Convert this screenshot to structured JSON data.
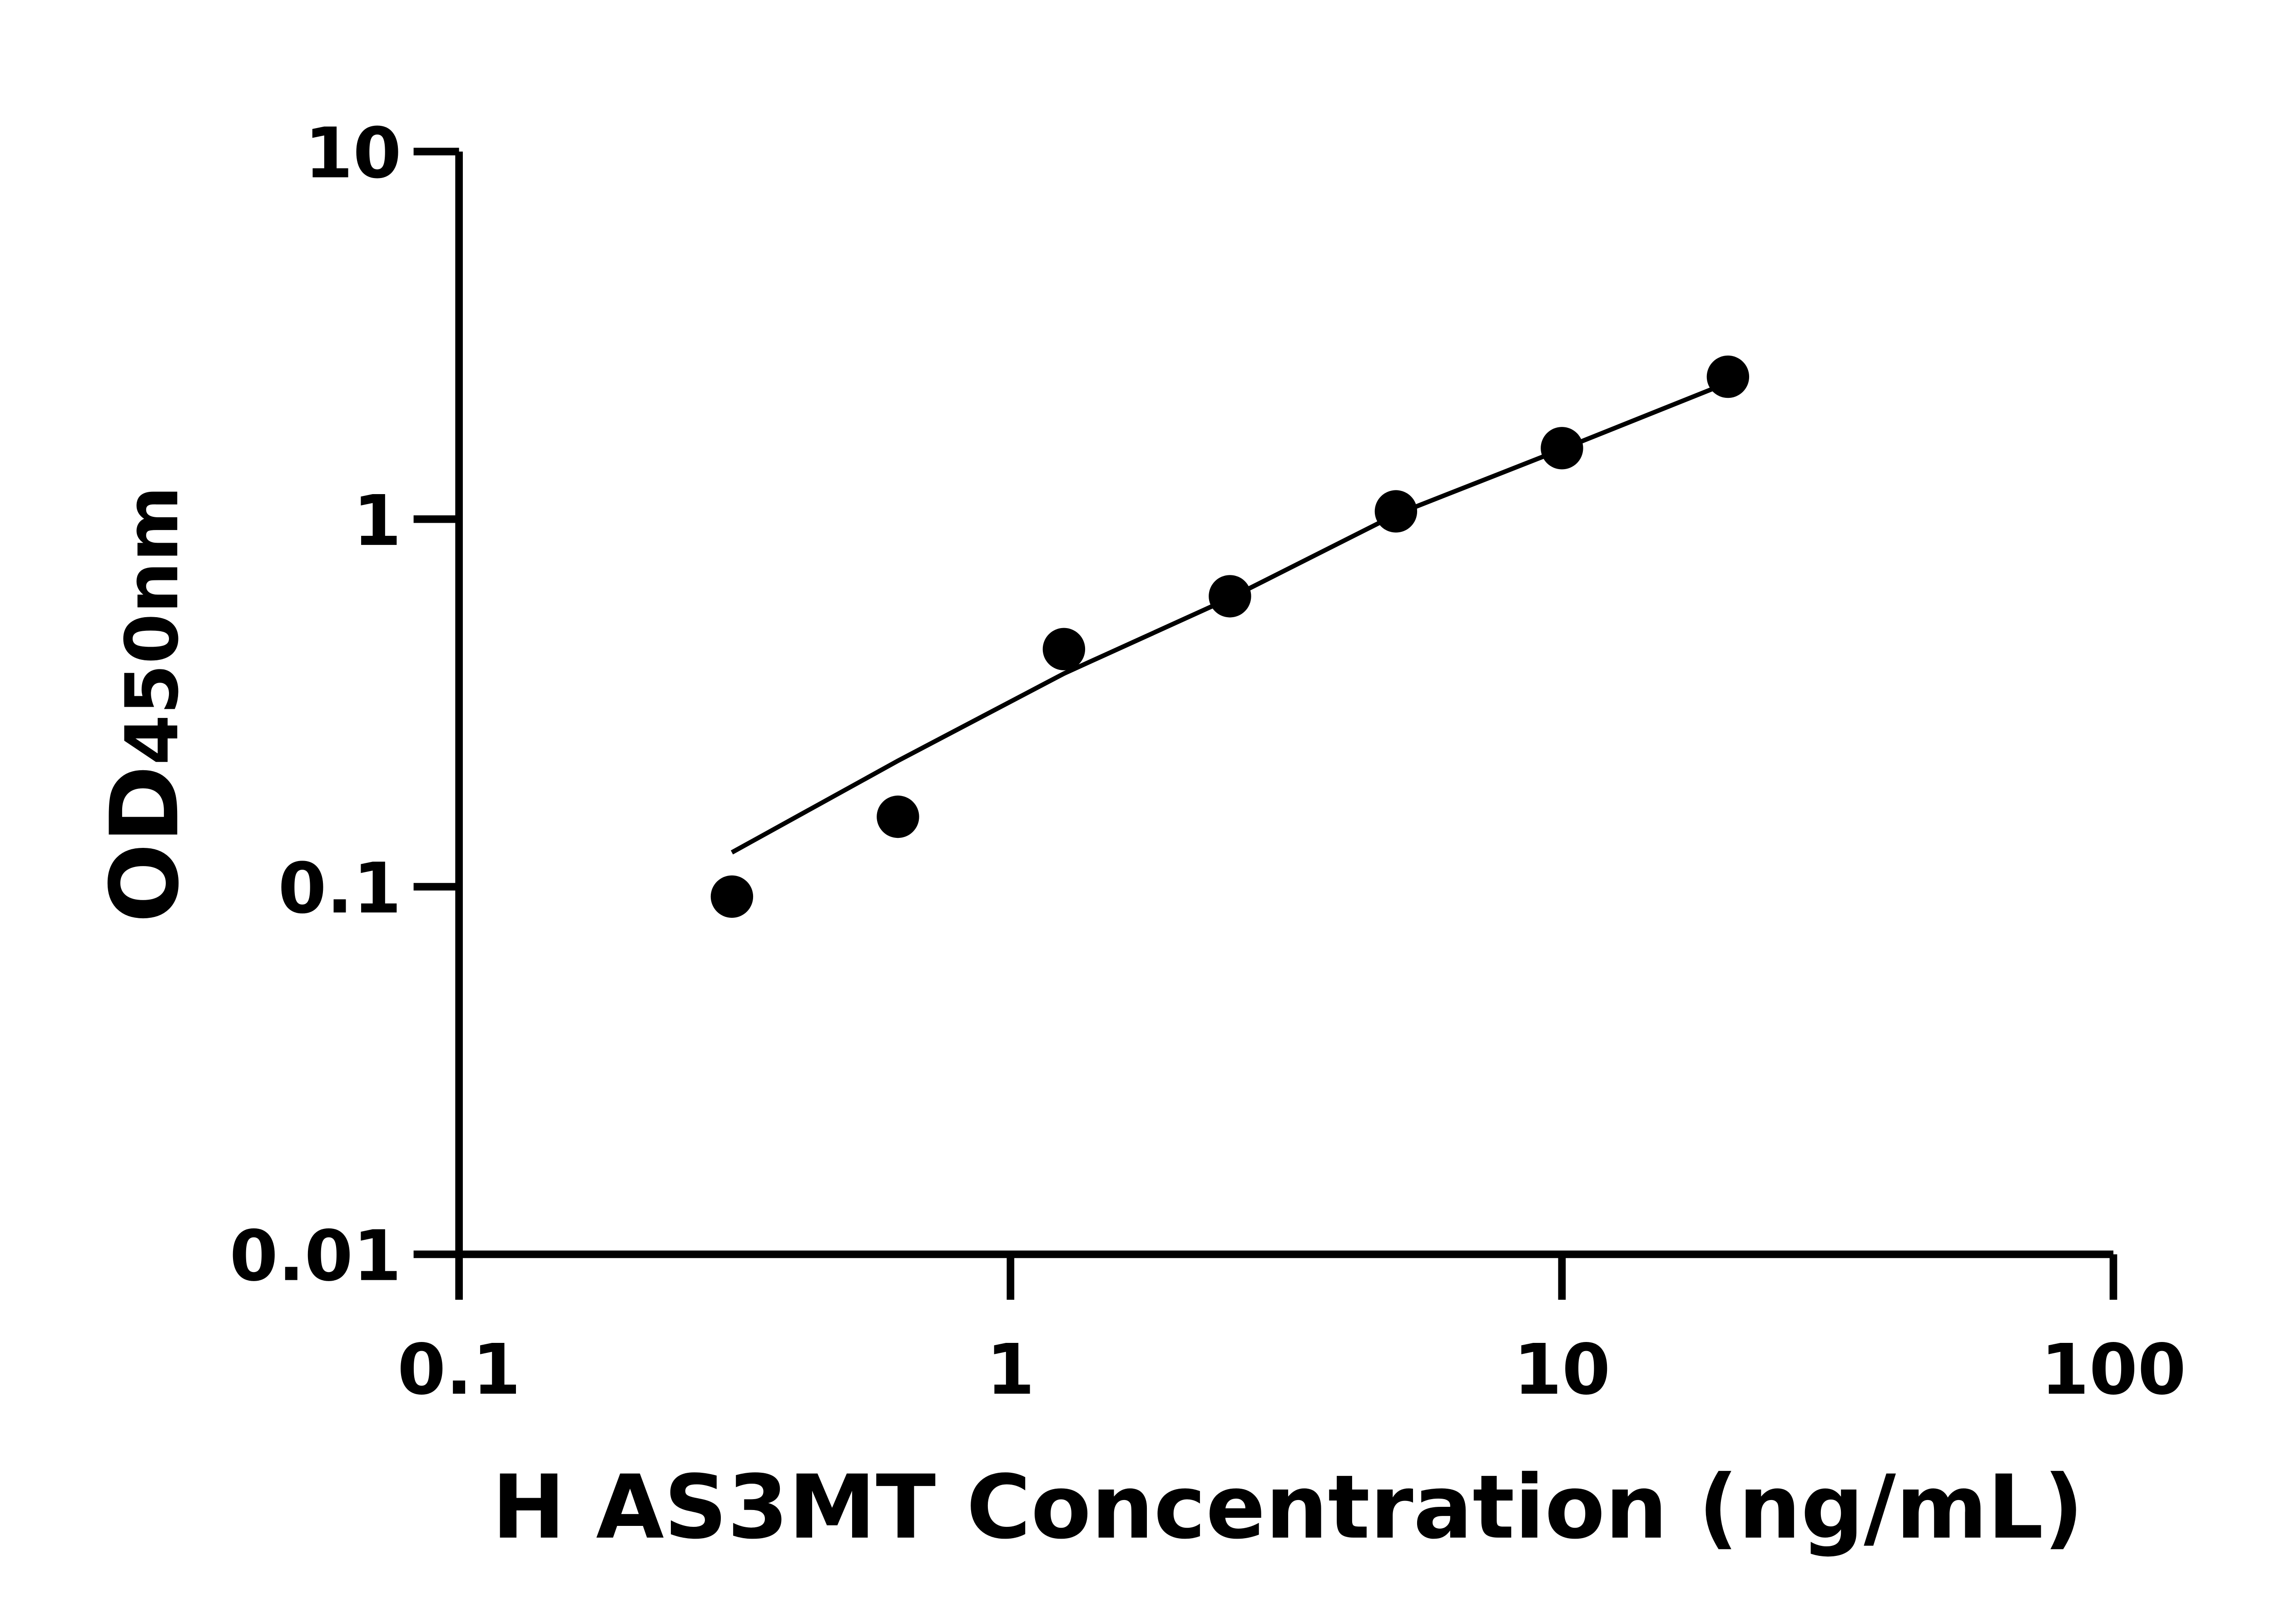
{
  "chart_data": {
    "type": "scatter",
    "title": "",
    "xlabel": "H AS3MT Concentration (ng/mL)",
    "ylabel_main": "OD",
    "ylabel_sub": "450nm",
    "x_scale": "log",
    "y_scale": "log",
    "xlim": [
      0.1,
      100
    ],
    "ylim": [
      0.01,
      10
    ],
    "x_ticks": [
      0.1,
      1,
      10,
      100
    ],
    "x_tick_labels": [
      "0.1",
      "1",
      "10",
      "100"
    ],
    "y_ticks": [
      0.01,
      0.1,
      1,
      10
    ],
    "y_tick_labels": [
      "0.01",
      "0.1",
      "1",
      "10"
    ],
    "grid": false,
    "points": {
      "x": [
        0.3125,
        0.625,
        1.25,
        2.5,
        5,
        10,
        20
      ],
      "y": [
        0.094,
        0.155,
        0.443,
        0.617,
        1.05,
        1.56,
        2.44
      ]
    },
    "fit_curve": {
      "x": [
        0.3125,
        0.625,
        1.25,
        2.5,
        5,
        10,
        20
      ],
      "y": [
        0.124,
        0.22,
        0.38,
        0.61,
        1.03,
        1.55,
        2.35
      ]
    },
    "colors": {
      "points": "#000000",
      "line": "#000000",
      "axes": "#000000"
    }
  }
}
